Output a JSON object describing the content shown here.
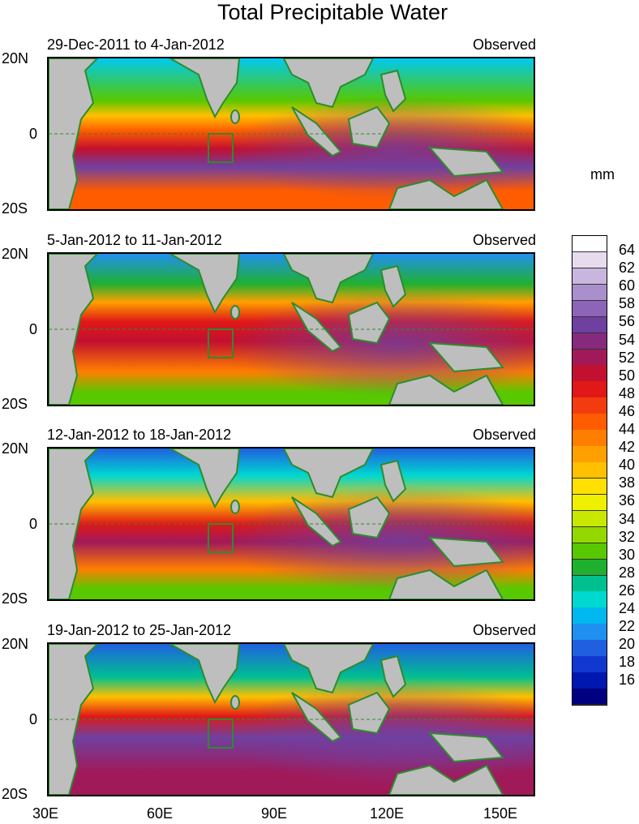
{
  "title": "Total Precipitable Water",
  "panels": [
    {
      "date_range": "29-Dec-2011 to 4-Jan-2012",
      "source": "Observed"
    },
    {
      "date_range": "5-Jan-2012 to 11-Jan-2012",
      "source": "Observed"
    },
    {
      "date_range": "12-Jan-2012 to 18-Jan-2012",
      "source": "Observed"
    },
    {
      "date_range": "19-Jan-2012 to 25-Jan-2012",
      "source": "Observed"
    }
  ],
  "lat_labels": [
    "20N",
    "0",
    "20S"
  ],
  "lon_labels": [
    "30E",
    "60E",
    "90E",
    "120E",
    "150E"
  ],
  "unit": "mm",
  "colorbar": {
    "labels": [
      "64",
      "62",
      "60",
      "58",
      "56",
      "54",
      "52",
      "50",
      "48",
      "46",
      "44",
      "42",
      "40",
      "38",
      "36",
      "34",
      "32",
      "30",
      "28",
      "26",
      "24",
      "22",
      "20",
      "18",
      "16"
    ],
    "colors": [
      "#ffffff",
      "#e6dcee",
      "#c8b6de",
      "#a98fcc",
      "#8c64b8",
      "#7040a0",
      "#862a7e",
      "#a01a5a",
      "#c21030",
      "#e01818",
      "#f23c10",
      "#ff5c00",
      "#ff7e00",
      "#ffa000",
      "#ffc000",
      "#ffe000",
      "#eef000",
      "#c8e800",
      "#94d800",
      "#58c800",
      "#20b030",
      "#00c090",
      "#00d8d0",
      "#00b8f0",
      "#2090f0",
      "#2060e0",
      "#1038d0",
      "#0018b0",
      "#000080"
    ],
    "colors_note": "ordered top to bottom"
  },
  "colors": {
    "land": "#bebebe",
    "coast": "#2e8b2e",
    "box": "#2e8b2e"
  }
}
